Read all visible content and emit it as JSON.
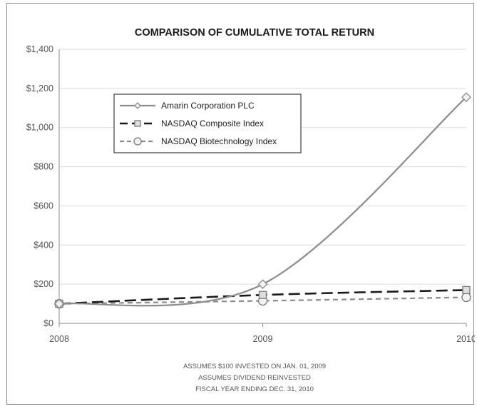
{
  "chart_data": {
    "type": "line",
    "title": "COMPARISON OF CUMULATIVE TOTAL RETURN",
    "x": [
      "2008",
      "2009",
      "2010"
    ],
    "ylim": [
      0,
      1400
    ],
    "yticks": [
      "$0",
      "$200",
      "$400",
      "$600",
      "$800",
      "$1,000",
      "$1,200",
      "$1,400"
    ],
    "ytick_values": [
      0,
      200,
      400,
      600,
      800,
      1000,
      1200,
      1400
    ],
    "grid": true,
    "legend_position": "upper-left",
    "series": [
      {
        "name": "Amarin Corporation PLC",
        "values": [
          100,
          200,
          1155
        ],
        "color": "#8c8c8c",
        "dash": "solid",
        "marker": "diamond"
      },
      {
        "name": "NASDAQ Composite Index",
        "values": [
          100,
          145,
          170
        ],
        "color": "#1a1a1a",
        "dash": "long-dash",
        "marker": "square"
      },
      {
        "name": "NASDAQ Biotechnology Index",
        "values": [
          100,
          115,
          133
        ],
        "color": "#8c8c8c",
        "dash": "dash",
        "marker": "circle"
      }
    ],
    "footnotes": [
      "ASSUMES $100 INVESTED ON JAN. 01, 2009",
      "ASSUMES DIVIDEND REINVESTED",
      "FISCAL YEAR ENDING DEC. 31, 2010"
    ]
  }
}
